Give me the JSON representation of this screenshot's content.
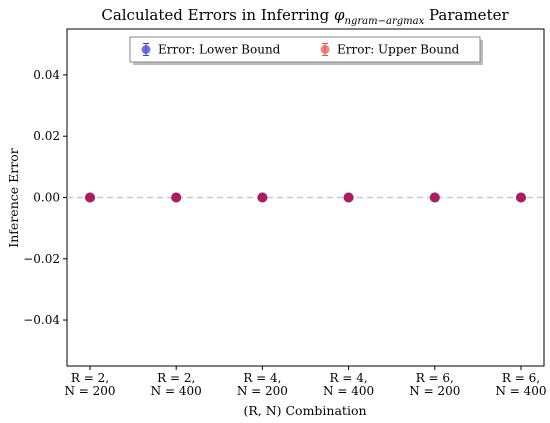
{
  "chart_data": {
    "type": "scatter",
    "title_prefix": "Calculated Errors in Inferring ",
    "title_symbol": "φ",
    "title_subscript": "ngram−argmax",
    "title_suffix": " Parameter",
    "xlabel": "(R, N) Combination",
    "ylabel": "Inference Error",
    "categories": [
      [
        "R = 2,",
        "N = 200"
      ],
      [
        "R = 2,",
        "N = 400"
      ],
      [
        "R = 4,",
        "N = 200"
      ],
      [
        "R = 4,",
        "N = 400"
      ],
      [
        "R = 6,",
        "N = 200"
      ],
      [
        "R = 6,",
        "N = 400"
      ]
    ],
    "ylim": [
      -0.055,
      0.055
    ],
    "yticks": [
      -0.04,
      -0.02,
      0.0,
      0.02,
      0.04
    ],
    "ytick_labels": [
      "−0.04",
      "−0.02",
      "0.00",
      "0.02",
      "0.04"
    ],
    "reference_line": {
      "y": 0.0,
      "style": "dashed",
      "color": "#c7c7d4"
    },
    "series": [
      {
        "name": "Error: Lower Bound",
        "color": "#3b3bd6",
        "values": [
          0.0,
          0.0,
          0.0,
          0.0,
          0.0,
          0.0
        ]
      },
      {
        "name": "Error: Upper Bound",
        "color": "#e8504a",
        "values": [
          0.0,
          0.0,
          0.0,
          0.0,
          0.0,
          0.0
        ]
      }
    ],
    "overlap_color": "#b0185a",
    "legend_position": "top-center",
    "grid": false
  }
}
